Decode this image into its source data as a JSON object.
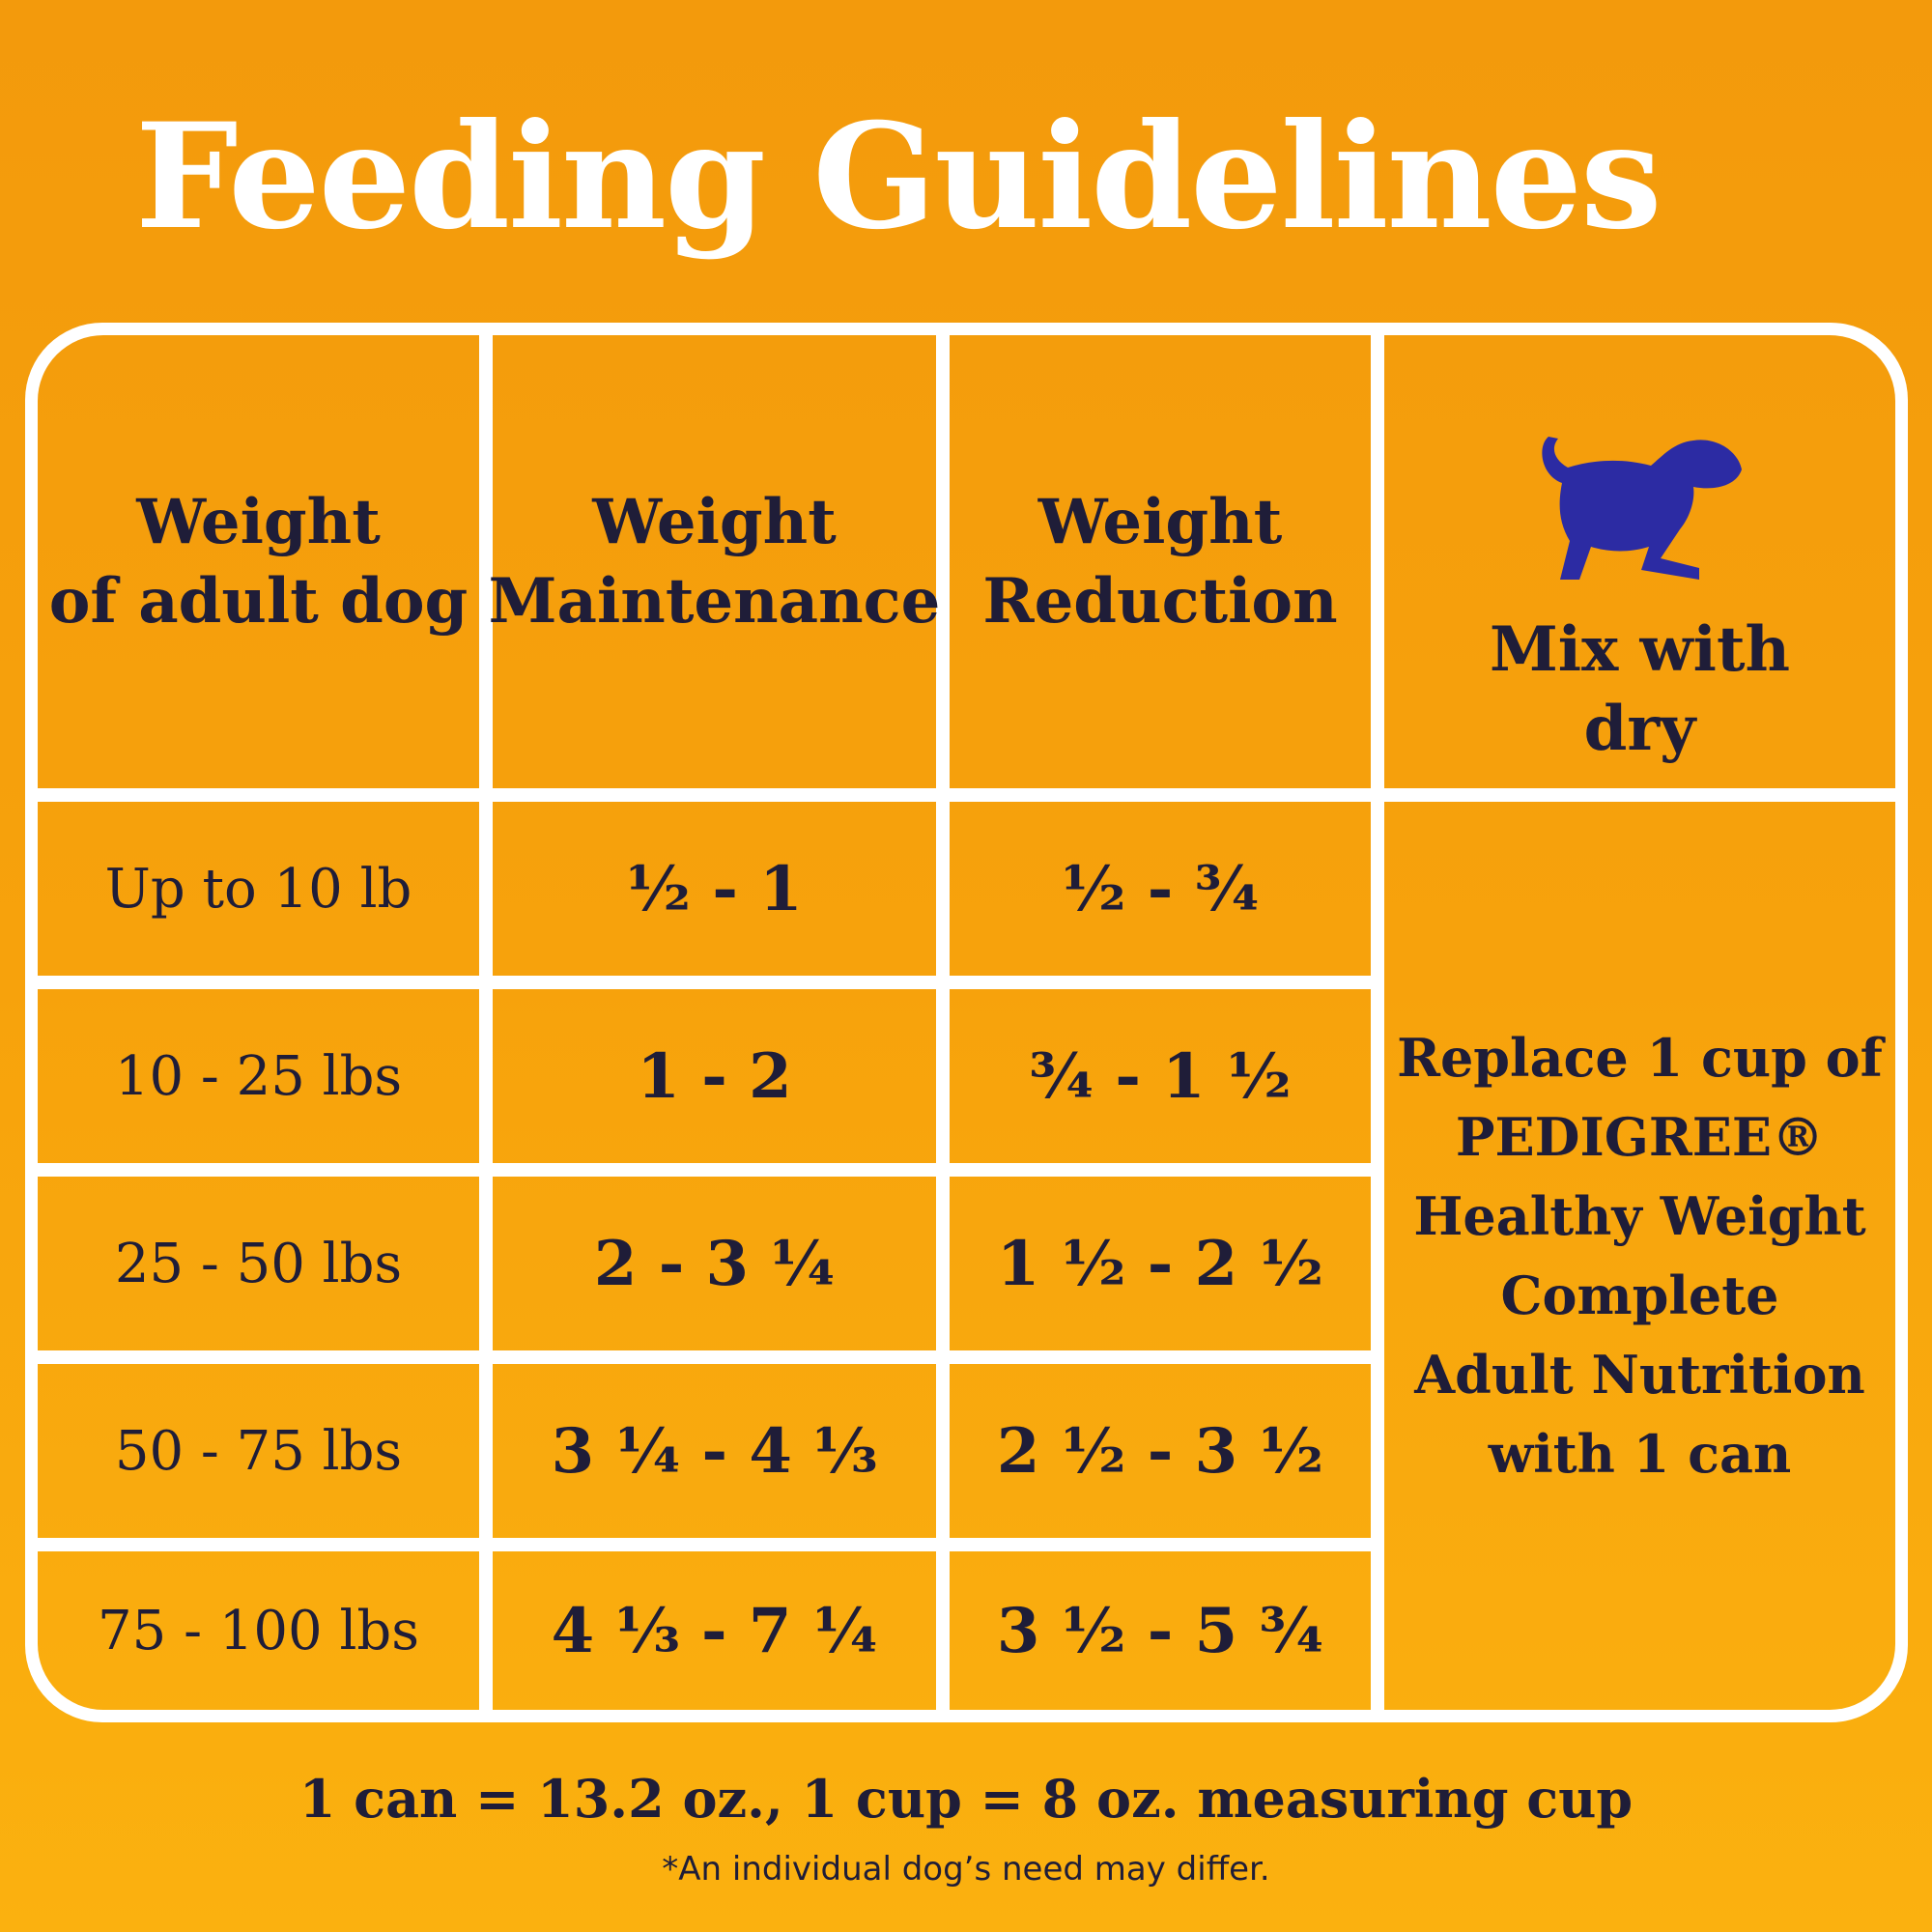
{
  "title": "Feeding Guidelines",
  "table": {
    "header": [
      [
        "Weight",
        "of adult dog"
      ],
      [
        "Weight",
        "Maintenance"
      ],
      [
        "Weight",
        "Reduction"
      ],
      [
        "Mix with",
        "dry"
      ]
    ],
    "rows": [
      [
        "Up to 10 lb",
        "½ - 1",
        "½ - ¾"
      ],
      [
        "10 - 25 lbs",
        "1 - 2",
        "¾ - 1 ½"
      ],
      [
        "25 - 50 lbs",
        "2 - 3 ¼",
        "1 ½ - 2 ½"
      ],
      [
        "50 - 75 lbs",
        "3 ¼ - 4 ⅓",
        "2 ½ - 3 ½"
      ],
      [
        "75 - 100 lbs",
        "4 ⅓ - 7 ¼",
        "3 ½ - 5 ¾"
      ]
    ],
    "note": [
      "Replace 1 cup of",
      "PEDIGREE®",
      "Healthy Weight",
      "Complete",
      "Adult Nutrition",
      "with 1 can"
    ]
  },
  "footer": {
    "measure": "1 can = 13.2 oz., 1 cup = 8 oz. measuring cup",
    "disclaimer": "*An individual dog’s need may differ."
  }
}
